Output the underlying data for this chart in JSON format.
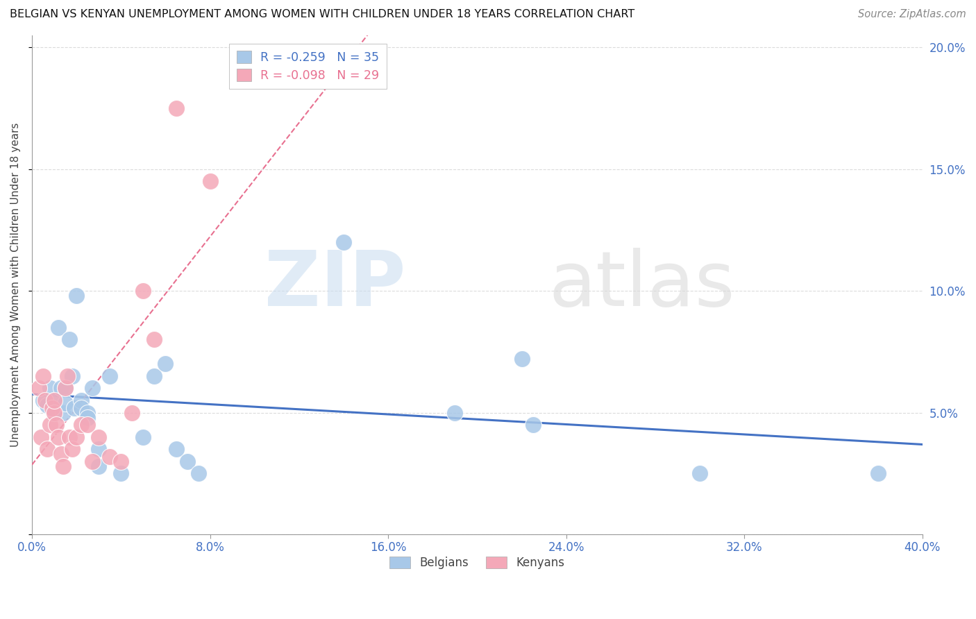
{
  "title": "BELGIAN VS KENYAN UNEMPLOYMENT AMONG WOMEN WITH CHILDREN UNDER 18 YEARS CORRELATION CHART",
  "source": "Source: ZipAtlas.com",
  "ylabel": "Unemployment Among Women with Children Under 18 years",
  "xlim": [
    0.0,
    0.4
  ],
  "ylim": [
    0.0,
    0.205
  ],
  "xticks": [
    0.0,
    0.08,
    0.16,
    0.24,
    0.32,
    0.4
  ],
  "xtick_labels": [
    "0.0%",
    "8.0%",
    "16.0%",
    "24.0%",
    "32.0%",
    "40.0%"
  ],
  "yticks": [
    0.0,
    0.05,
    0.1,
    0.15,
    0.2
  ],
  "ytick_labels_right": [
    "",
    "5.0%",
    "10.0%",
    "15.0%",
    "20.0%"
  ],
  "blue_R": -0.259,
  "blue_N": 35,
  "pink_R": -0.098,
  "pink_N": 29,
  "belgians_x": [
    0.005,
    0.007,
    0.008,
    0.01,
    0.01,
    0.012,
    0.013,
    0.014,
    0.015,
    0.015,
    0.017,
    0.018,
    0.019,
    0.02,
    0.022,
    0.022,
    0.025,
    0.025,
    0.027,
    0.03,
    0.03,
    0.035,
    0.04,
    0.05,
    0.055,
    0.06,
    0.065,
    0.07,
    0.075,
    0.14,
    0.19,
    0.22,
    0.225,
    0.3,
    0.38
  ],
  "belgians_y": [
    0.055,
    0.053,
    0.06,
    0.05,
    0.055,
    0.085,
    0.06,
    0.05,
    0.06,
    0.054,
    0.08,
    0.065,
    0.052,
    0.098,
    0.055,
    0.052,
    0.05,
    0.048,
    0.06,
    0.035,
    0.028,
    0.065,
    0.025,
    0.04,
    0.065,
    0.07,
    0.035,
    0.03,
    0.025,
    0.12,
    0.05,
    0.072,
    0.045,
    0.025,
    0.025
  ],
  "kenyans_x": [
    0.003,
    0.004,
    0.005,
    0.006,
    0.007,
    0.008,
    0.009,
    0.01,
    0.01,
    0.011,
    0.012,
    0.013,
    0.014,
    0.015,
    0.016,
    0.017,
    0.018,
    0.02,
    0.022,
    0.025,
    0.027,
    0.03,
    0.035,
    0.04,
    0.045,
    0.05,
    0.055,
    0.065,
    0.08
  ],
  "kenyans_y": [
    0.06,
    0.04,
    0.065,
    0.055,
    0.035,
    0.045,
    0.052,
    0.05,
    0.055,
    0.045,
    0.04,
    0.033,
    0.028,
    0.06,
    0.065,
    0.04,
    0.035,
    0.04,
    0.045,
    0.045,
    0.03,
    0.04,
    0.032,
    0.03,
    0.05,
    0.1,
    0.08,
    0.175,
    0.145
  ],
  "blue_marker_color": "#A8C8E8",
  "pink_marker_color": "#F4A8B8",
  "regression_blue_color": "#4472C4",
  "regression_pink_color": "#E87090",
  "background_color": "#FFFFFF",
  "grid_color": "#CCCCCC"
}
